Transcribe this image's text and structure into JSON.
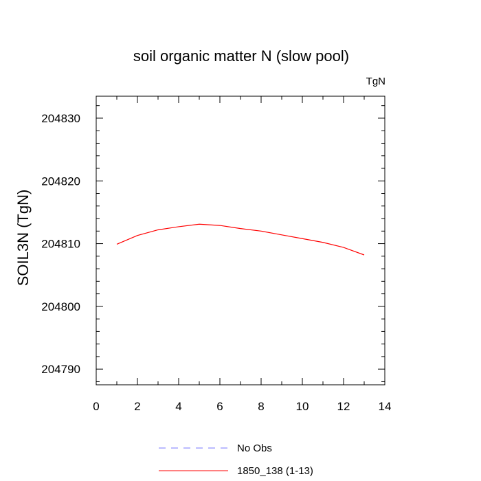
{
  "chart_data": {
    "type": "line",
    "title": "soil organic matter N (slow pool)",
    "units": "TgN",
    "ylabel": "SOIL3N  (TgN)",
    "xlabel": "",
    "xlim": [
      0,
      14
    ],
    "ylim": [
      204787.5,
      204833.5
    ],
    "x_ticks": [
      0,
      2,
      4,
      6,
      8,
      10,
      12,
      14
    ],
    "y_ticks": [
      204790,
      204800,
      204810,
      204820,
      204830
    ],
    "x_minor_step": 1,
    "y_minor_step": 2,
    "grid": false,
    "legend_position": "bottom",
    "series": [
      {
        "name": "No Obs",
        "color": "#7777ff",
        "style": "dashed",
        "x": [],
        "y": []
      },
      {
        "name": "1850_138 (1-13)",
        "color": "#ff0000",
        "style": "solid",
        "x": [
          1,
          2,
          3,
          4,
          5,
          6,
          7,
          8,
          9,
          10,
          11,
          12,
          13
        ],
        "y": [
          204809.9,
          204811.3,
          204812.2,
          204812.7,
          204813.1,
          204812.9,
          204812.4,
          204812.0,
          204811.4,
          204810.8,
          204810.2,
          204809.4,
          204808.2
        ]
      }
    ]
  }
}
